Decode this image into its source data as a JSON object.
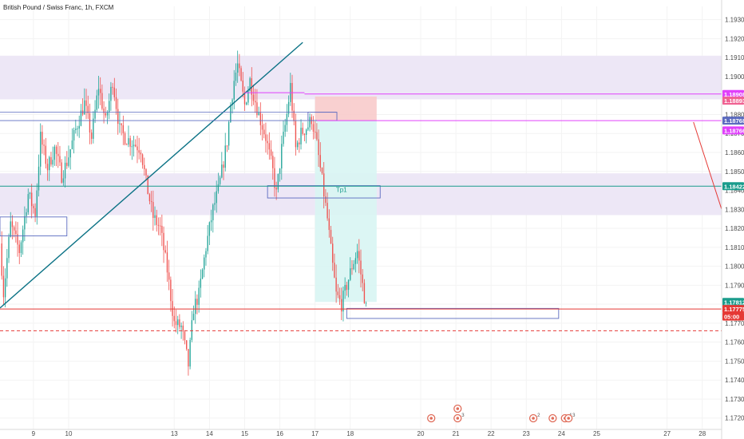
{
  "header": {
    "title": "British Pound / Swiss Franc, 1h, FXCM"
  },
  "colors": {
    "up": "#26a69a",
    "down": "#ef5350",
    "band": "#ede7f6",
    "magenta": "#e040fb",
    "teal": "#0b7285",
    "red": "#e53935",
    "box": "#5c6bc0",
    "tp_green": "#1a9c8c",
    "stop": "#f8c8c8",
    "target": "#d8f5f3",
    "axis_text": "#4a4a4a",
    "grid": "#f3f3f3"
  },
  "chart_data": {
    "type": "candlestick",
    "ylim": [
      1.1714,
      1.1937
    ],
    "y_ticks": [
      "1.17200",
      "1.17300",
      "1.17400",
      "1.17500",
      "1.17600",
      "1.17700",
      "1.17800",
      "1.17900",
      "1.18000",
      "1.18100",
      "1.18200",
      "1.18300",
      "1.18400",
      "1.18500",
      "1.18600",
      "1.18700",
      "1.18800",
      "1.18900",
      "1.19000",
      "1.19100",
      "1.19200",
      "1.19300"
    ],
    "xlim": [
      8.05,
      28.55
    ],
    "x_ticks": [
      {
        "x": 9,
        "label": "9"
      },
      {
        "x": 10,
        "label": "10"
      },
      {
        "x": 13,
        "label": "13"
      },
      {
        "x": 14,
        "label": "14"
      },
      {
        "x": 15,
        "label": "15"
      },
      {
        "x": 16,
        "label": "16"
      },
      {
        "x": 17,
        "label": "17"
      },
      {
        "x": 18,
        "label": "18"
      },
      {
        "x": 20,
        "label": "20"
      },
      {
        "x": 21,
        "label": "21"
      },
      {
        "x": 22,
        "label": "22"
      },
      {
        "x": 23,
        "label": "23"
      },
      {
        "x": 24,
        "label": "24"
      },
      {
        "x": 25,
        "label": "25"
      },
      {
        "x": 27,
        "label": "27"
      },
      {
        "x": 28,
        "label": "28"
      }
    ],
    "anchors": [
      [
        8.05,
        1.1812
      ],
      [
        8.15,
        1.1786
      ],
      [
        8.35,
        1.1822
      ],
      [
        8.6,
        1.1808
      ],
      [
        8.85,
        1.1838
      ],
      [
        9.05,
        1.1828
      ],
      [
        9.2,
        1.1868
      ],
      [
        9.4,
        1.1852
      ],
      [
        9.6,
        1.1862
      ],
      [
        9.8,
        1.1848
      ],
      [
        9.95,
        1.1855
      ],
      [
        10.2,
        1.1872
      ],
      [
        10.45,
        1.1886
      ],
      [
        10.65,
        1.1868
      ],
      [
        10.85,
        1.1895
      ],
      [
        11.05,
        1.1876
      ],
      [
        11.25,
        1.1898
      ],
      [
        11.45,
        1.1872
      ],
      [
        11.6,
        1.1868
      ],
      [
        12.05,
        1.1862
      ],
      [
        12.2,
        1.1844
      ],
      [
        12.4,
        1.1826
      ],
      [
        12.6,
        1.182
      ],
      [
        12.8,
        1.1798
      ],
      [
        13.0,
        1.177
      ],
      [
        13.2,
        1.1768
      ],
      [
        13.4,
        1.1748
      ],
      [
        13.55,
        1.1778
      ],
      [
        13.7,
        1.1785
      ],
      [
        13.9,
        1.181
      ],
      [
        14.1,
        1.183
      ],
      [
        14.25,
        1.184
      ],
      [
        14.35,
        1.185
      ],
      [
        14.5,
        1.1866
      ],
      [
        14.6,
        1.1885
      ],
      [
        14.7,
        1.1898
      ],
      [
        14.8,
        1.1906
      ],
      [
        15.0,
        1.1885
      ],
      [
        15.15,
        1.1898
      ],
      [
        15.4,
        1.188
      ],
      [
        15.6,
        1.1868
      ],
      [
        15.8,
        1.185
      ],
      [
        15.9,
        1.1838
      ],
      [
        16.05,
        1.1862
      ],
      [
        16.2,
        1.188
      ],
      [
        16.3,
        1.1895
      ],
      [
        16.45,
        1.1862
      ],
      [
        16.6,
        1.187
      ],
      [
        16.8,
        1.1874
      ],
      [
        16.9,
        1.1878
      ],
      [
        17.05,
        1.1864
      ],
      [
        17.2,
        1.1845
      ],
      [
        17.35,
        1.1825
      ],
      [
        17.5,
        1.18
      ],
      [
        17.6,
        1.1785
      ],
      [
        17.75,
        1.178
      ],
      [
        17.9,
        1.179
      ],
      [
        18.05,
        1.18
      ],
      [
        18.2,
        1.1808
      ],
      [
        18.35,
        1.179
      ],
      [
        18.45,
        1.1778
      ]
    ],
    "bands": [
      [
        1.1888,
        1.1911
      ],
      [
        1.1827,
        1.1849
      ]
    ],
    "lines": [
      {
        "kind": "h",
        "y": 1.18908,
        "x1": 16.7,
        "x2": 28.55,
        "color": "magenta",
        "dash": false
      },
      {
        "kind": "h",
        "y": 1.18768,
        "x1": 17.05,
        "x2": 28.55,
        "color": "magenta",
        "dash": false
      },
      {
        "kind": "h",
        "y": 1.18422,
        "x1": 8.05,
        "x2": 28.55,
        "color": "tp_green",
        "dash": false
      },
      {
        "kind": "h",
        "y": 1.17775,
        "x1": 8.05,
        "x2": 28.55,
        "color": "red",
        "dash": false
      },
      {
        "kind": "h",
        "y": 1.1766,
        "x1": 8.05,
        "x2": 28.55,
        "color": "red",
        "dash": true
      },
      {
        "kind": "seg",
        "x1": 8.05,
        "y1": 1.1778,
        "x2": 16.65,
        "y2": 1.1918,
        "color": "teal",
        "width": 1.4
      },
      {
        "kind": "seg",
        "x1": 15.0,
        "y1": 1.18915,
        "x2": 16.7,
        "y2": 1.18915,
        "color": "magenta",
        "width": 1
      },
      {
        "kind": "seg",
        "x1": 8.05,
        "y1": 1.18812,
        "x2": 17.6,
        "y2": 1.18812,
        "color": "box",
        "width": 0.8
      },
      {
        "kind": "seg",
        "x1": 8.05,
        "y1": 1.18768,
        "x2": 17.05,
        "y2": 1.18768,
        "color": "box",
        "width": 0.8
      },
      {
        "kind": "seg",
        "x1": 27.75,
        "y1": 1.1876,
        "x2": 28.55,
        "y2": 1.183,
        "color": "red",
        "width": 1
      }
    ],
    "boxes": [
      {
        "x1": 8.05,
        "x2": 9.95,
        "y1": 1.1816,
        "y2": 1.1826,
        "fill": "none",
        "stroke": "box"
      },
      {
        "x1": 16.8,
        "x2": 17.62,
        "y1": 1.18768,
        "y2": 1.18812,
        "fill": "none",
        "stroke": "box"
      },
      {
        "x1": 15.65,
        "x2": 18.85,
        "y1": 1.1836,
        "y2": 1.18425,
        "fill": "none",
        "stroke": "box"
      },
      {
        "x1": 17.9,
        "x2": 23.92,
        "y1": 1.17725,
        "y2": 1.17778,
        "fill": "none",
        "stroke": "box"
      },
      {
        "x1": 17.0,
        "x2": 18.75,
        "y1": 1.18768,
        "y2": 1.18895,
        "fill": "stop",
        "stroke": "none"
      },
      {
        "x1": 17.0,
        "x2": 18.75,
        "y1": 1.17812,
        "y2": 1.18768,
        "fill": "target",
        "stroke": "none"
      }
    ],
    "annotation": {
      "text": "Tp1",
      "x": 17.75,
      "y": 1.18392
    },
    "price_tags": [
      {
        "text": "1.18908",
        "y": 1.18908,
        "color": "magenta"
      },
      {
        "text": "1.18893",
        "y": 1.18873,
        "color": "stop_tag"
      },
      {
        "text": "1.18768",
        "y": 1.18768,
        "color": "box"
      },
      {
        "text": "1.18766",
        "y": 1.18716,
        "color": "magenta"
      },
      {
        "text": "1.18422",
        "y": 1.18422,
        "color": "tp_green"
      },
      {
        "text": "1.17812",
        "y": 1.17812,
        "color": "tp_green"
      },
      {
        "text": "1.17775",
        "y": 1.17775,
        "color": "red"
      },
      {
        "text": "05:00",
        "y": 1.17735,
        "color": "red"
      }
    ],
    "events": [
      {
        "x": 20.3,
        "label": ""
      },
      {
        "x": 21.05,
        "label": "3"
      },
      {
        "x": 23.2,
        "label": "2"
      },
      {
        "x": 23.75,
        "label": ""
      },
      {
        "x": 24.1,
        "label": "4"
      },
      {
        "x": 24.2,
        "label": "3"
      }
    ]
  }
}
